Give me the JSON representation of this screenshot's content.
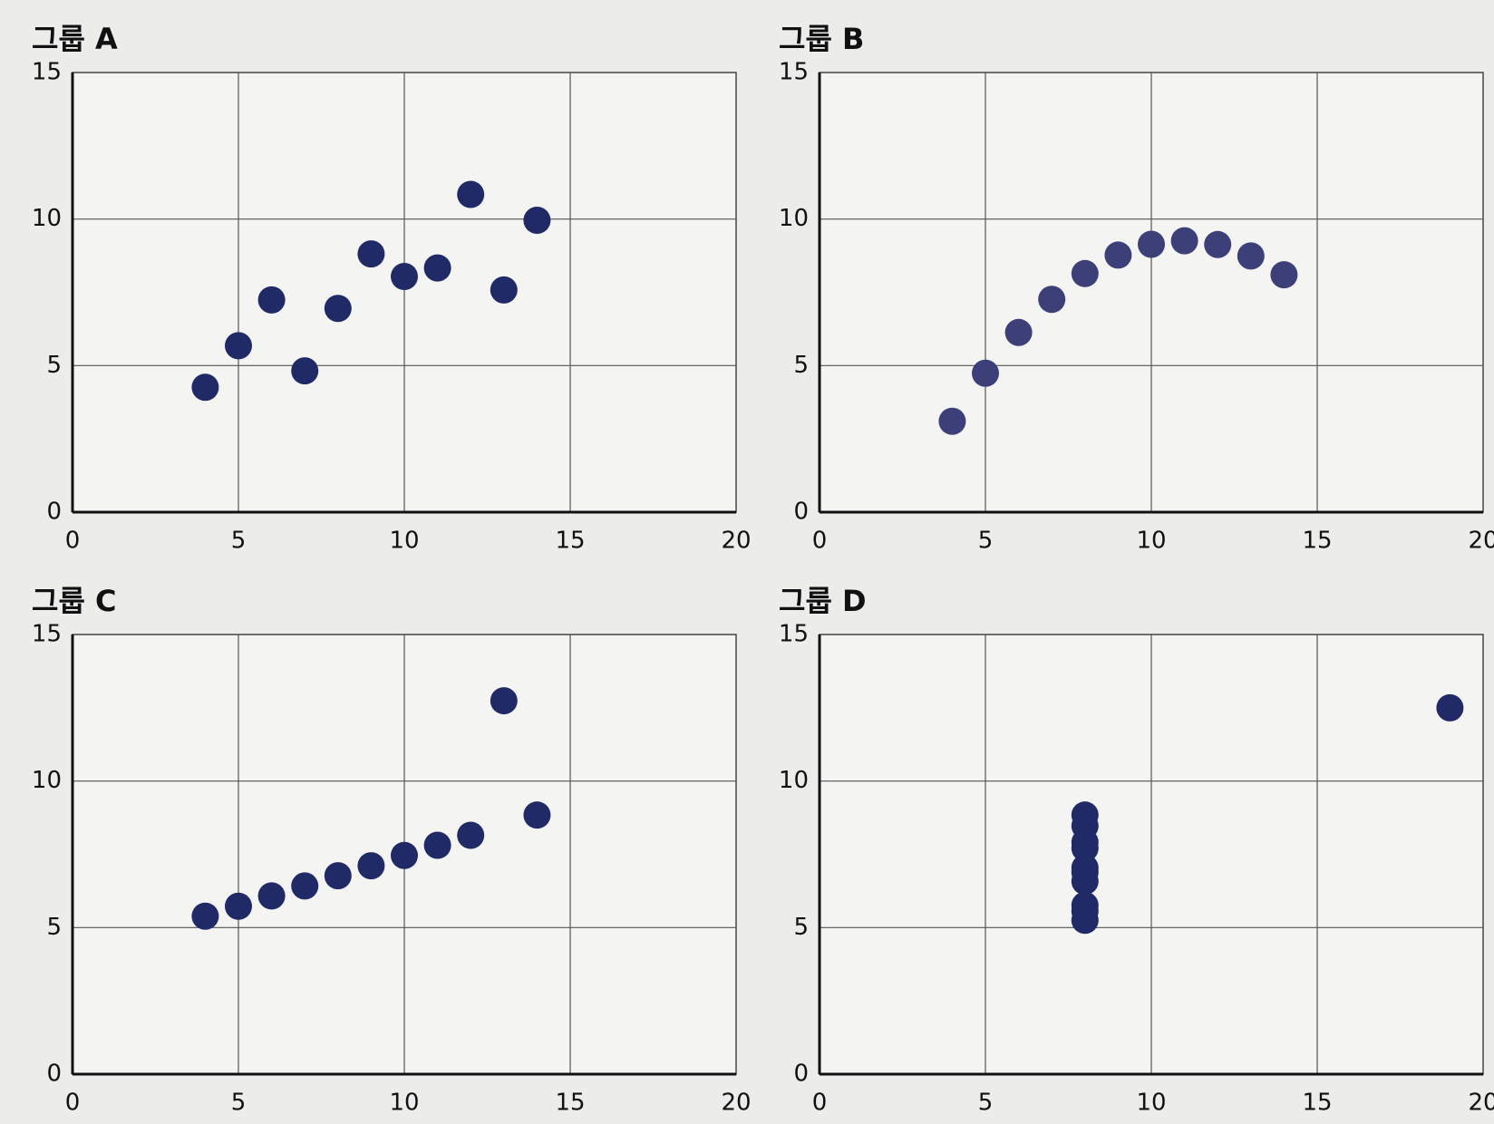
{
  "chart_data": [
    {
      "type": "scatter",
      "title": "그룹 A",
      "color": "#1f2a66",
      "x": [
        10,
        8,
        13,
        9,
        11,
        14,
        6,
        4,
        12,
        7,
        5
      ],
      "values": [
        8.04,
        6.95,
        7.58,
        8.81,
        8.33,
        9.96,
        7.24,
        4.26,
        10.84,
        4.82,
        5.68
      ],
      "xlim": [
        0,
        20
      ],
      "ylim": [
        0,
        15
      ],
      "xticks": [
        0,
        5,
        10,
        15,
        20
      ],
      "yticks": [
        0,
        5,
        10,
        15
      ],
      "grid": true
    },
    {
      "type": "scatter",
      "title": "그룹 B",
      "color": "#3d3f78",
      "x": [
        10,
        8,
        13,
        9,
        11,
        14,
        6,
        4,
        12,
        7,
        5
      ],
      "values": [
        9.14,
        8.14,
        8.74,
        8.77,
        9.26,
        8.1,
        6.13,
        3.1,
        9.13,
        7.26,
        4.74
      ],
      "xlim": [
        0,
        20
      ],
      "ylim": [
        0,
        15
      ],
      "xticks": [
        0,
        5,
        10,
        15,
        20
      ],
      "yticks": [
        0,
        5,
        10,
        15
      ],
      "grid": true
    },
    {
      "type": "scatter",
      "title": "그룹 C",
      "color": "#1f2a66",
      "x": [
        10,
        8,
        13,
        9,
        11,
        14,
        6,
        4,
        12,
        7,
        5
      ],
      "values": [
        7.46,
        6.77,
        12.74,
        7.11,
        7.81,
        8.84,
        6.08,
        5.39,
        8.15,
        6.42,
        5.73
      ],
      "xlim": [
        0,
        20
      ],
      "ylim": [
        0,
        15
      ],
      "xticks": [
        0,
        5,
        10,
        15,
        20
      ],
      "yticks": [
        0,
        5,
        10,
        15
      ],
      "grid": true
    },
    {
      "type": "scatter",
      "title": "그룹 D",
      "color": "#1f2a66",
      "x": [
        8,
        8,
        8,
        8,
        8,
        8,
        8,
        19,
        8,
        8,
        8
      ],
      "values": [
        6.58,
        5.76,
        7.71,
        8.84,
        8.47,
        7.04,
        5.25,
        12.5,
        5.56,
        7.91,
        6.89
      ],
      "xlim": [
        0,
        20
      ],
      "ylim": [
        0,
        15
      ],
      "xticks": [
        0,
        5,
        10,
        15,
        20
      ],
      "yticks": [
        0,
        5,
        10,
        15
      ],
      "grid": true
    }
  ]
}
